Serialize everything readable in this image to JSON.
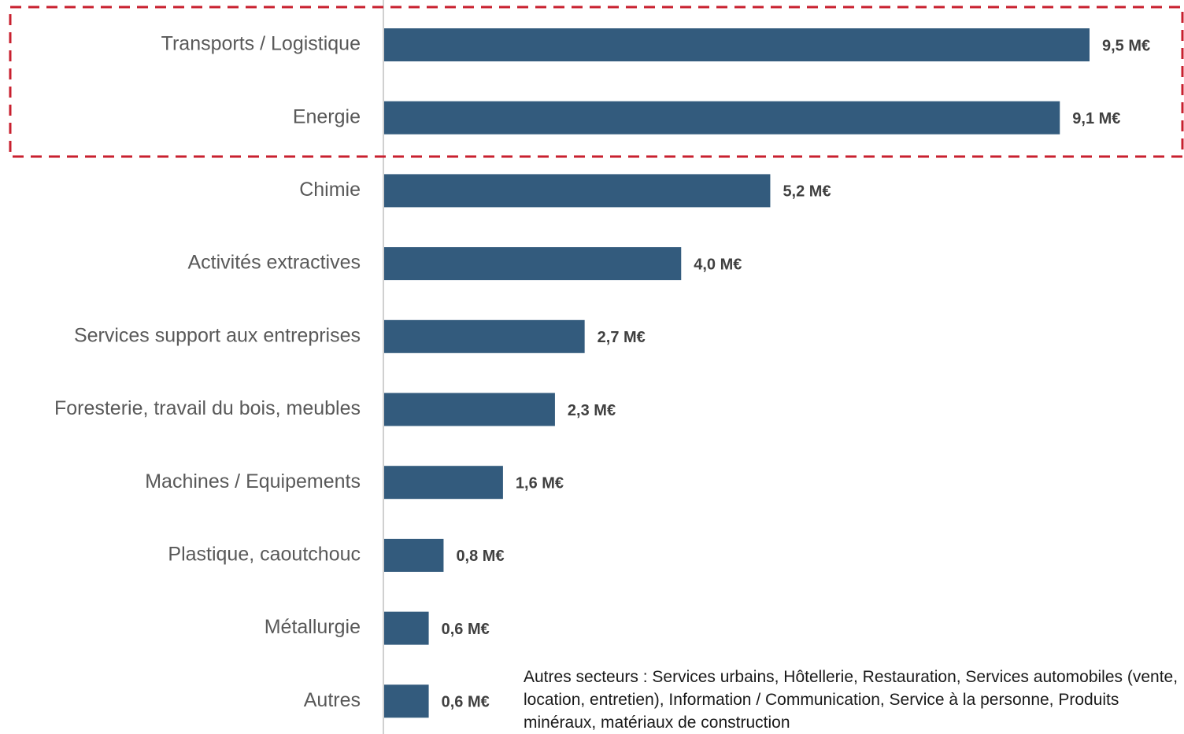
{
  "chart_data": {
    "type": "bar",
    "orientation": "horizontal",
    "color": "#335b7d",
    "categories": [
      "Transports / Logistique",
      "Energie",
      "Chimie",
      "Activités extractives",
      "Services support aux entreprises",
      "Foresterie, travail du bois, meubles",
      "Machines / Equipements",
      "Plastique, caoutchouc",
      "Métallurgie",
      "Autres"
    ],
    "values": [
      9.5,
      9.1,
      5.2,
      4.0,
      2.7,
      2.3,
      1.6,
      0.8,
      0.6,
      0.6
    ],
    "value_labels": [
      "9,5 M€",
      "9,1 M€",
      "5,2 M€",
      "4,0 M€",
      "2,7 M€",
      "2,3 M€",
      "1,6 M€",
      "0,8 M€",
      "0,6 M€",
      "0,6 M€"
    ],
    "annotation": "Autres secteurs : Services urbains, Hôtellerie, Restauration, Services automobiles (vente, location, entretien), Information / Communication, Service à la personne, Produits minéraux, matériaux de construction"
  }
}
